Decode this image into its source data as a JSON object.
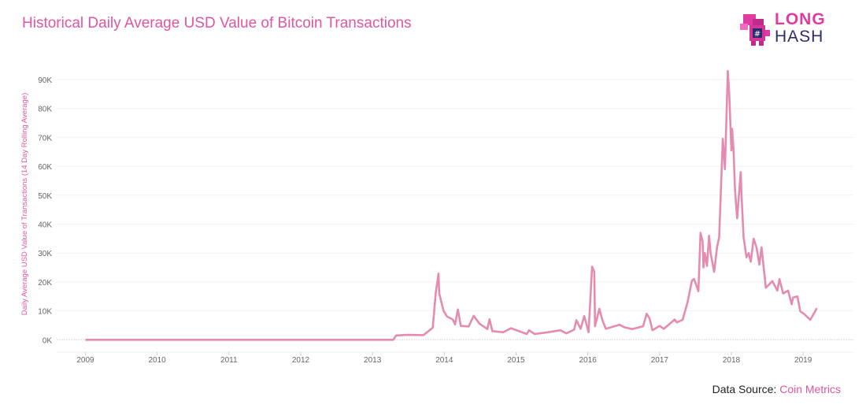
{
  "header": {
    "title": "Historical Daily Average USD Value of Bitcoin Transactions"
  },
  "logo": {
    "line1": "LONG",
    "line2": "HASH"
  },
  "footer": {
    "source_label": "Data Source:",
    "source_link": "Coin Metrics"
  },
  "chart_data": {
    "type": "line",
    "title": "Historical Daily Average USD Value of Bitcoin Transactions",
    "xlabel": "",
    "ylabel": "Daily Average USD Value of Transactions (14 Day Rolling Average)",
    "xlim": [
      2008.6,
      2019.7
    ],
    "ylim": [
      -7,
      93
    ],
    "x_ticks": [
      "2009",
      "2010",
      "2011",
      "2012",
      "2013",
      "2014",
      "2015",
      "2016",
      "2017",
      "2018",
      "2019"
    ],
    "y_ticks": [
      "0K",
      "10K",
      "20K",
      "30K",
      "40K",
      "50K",
      "60K",
      "70K",
      "80K",
      "90K"
    ],
    "grid": true,
    "color": "#e58bb0",
    "series": [
      {
        "x": [
          2009,
          2013.29,
          2013.33,
          2013.49,
          2013.71,
          2013.79,
          2013.84,
          2013.88,
          2013.92,
          2013.93,
          2013.99,
          2014.04,
          2014.12,
          2014.15,
          2014.19,
          2014.23,
          2014.34,
          2014.41,
          2014.49,
          2014.6,
          2014.63,
          2014.67,
          2014.82,
          2014.93,
          2015.04,
          2015.15,
          2015.18,
          2015.26,
          2015.44,
          2015.62,
          2015.7,
          2015.81,
          2015.84,
          2015.9,
          2015.95,
          2016.01,
          2016.06,
          2016.09,
          2016.1,
          2016.16,
          2016.2,
          2016.25,
          2016.44,
          2016.51,
          2016.62,
          2016.77,
          2016.82,
          2016.86,
          2016.9,
          2017.0,
          2017.06,
          2017.21,
          2017.24,
          2017.32,
          2017.39,
          2017.45,
          2017.48,
          2017.54,
          2017.57,
          2017.6,
          2017.61,
          2017.63,
          2017.66,
          2017.69,
          2017.71,
          2017.76,
          2017.8,
          2017.83,
          2017.88,
          2017.91,
          2017.95,
          2017.97,
          2018.0,
          2018.01,
          2018.03,
          2018.05,
          2018.08,
          2018.13,
          2018.14,
          2018.17,
          2018.21,
          2018.24,
          2018.27,
          2018.31,
          2018.35,
          2018.39,
          2018.42,
          2018.48,
          2018.57,
          2018.64,
          2018.67,
          2018.72,
          2018.79,
          2018.84,
          2018.86,
          2018.92,
          2018.96,
          2019.01,
          2019.1,
          2019.19
        ],
        "y": [
          0,
          0,
          1.5,
          1.7,
          1.6,
          3.2,
          4.2,
          16,
          22.9,
          16,
          10,
          8,
          7,
          5.3,
          10.5,
          4.8,
          4.6,
          8.3,
          5.6,
          3.7,
          7.1,
          3,
          2.6,
          4,
          3,
          2,
          3.3,
          2,
          2.6,
          3.3,
          2.2,
          3.5,
          6.8,
          3.8,
          8.2,
          2.6,
          25.3,
          23.5,
          4.7,
          10.7,
          7,
          3.8,
          5.2,
          4.3,
          3.7,
          4.7,
          9,
          7.4,
          3.3,
          4.8,
          3.8,
          7,
          6,
          6.9,
          13,
          20.5,
          21,
          16.8,
          37,
          34,
          25,
          30,
          25.5,
          36,
          30,
          23.5,
          32,
          35.5,
          69.5,
          59,
          93,
          85,
          65.5,
          73,
          66,
          52,
          42,
          58,
          50.5,
          35.5,
          28.5,
          30,
          27,
          35,
          32,
          26,
          32,
          18,
          20.3,
          17,
          21,
          16,
          17,
          12.3,
          14.6,
          15,
          9.8,
          9,
          6.9,
          10.9
        ]
      }
    ]
  }
}
